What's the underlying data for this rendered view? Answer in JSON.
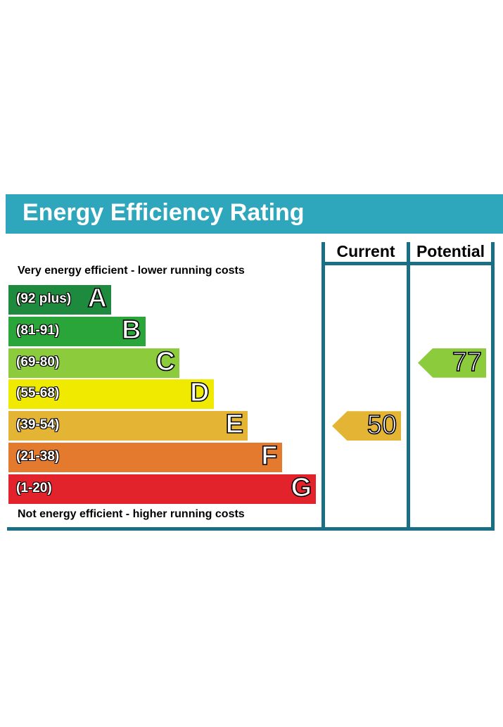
{
  "title": "Energy Efficiency Rating",
  "columns": {
    "current": "Current",
    "potential": "Potential"
  },
  "top_caption": "Very energy efficient - lower running costs",
  "bottom_caption": "Not energy efficient - higher running costs",
  "colors": {
    "header": "#2ea7bc",
    "frame": "#1a6f84"
  },
  "chart_data": {
    "type": "bar",
    "title": "Energy Efficiency Rating",
    "categories": [
      "A",
      "B",
      "C",
      "D",
      "E",
      "F",
      "G"
    ],
    "bands": [
      {
        "letter": "A",
        "range": "(92 plus)",
        "min": 92,
        "max": 100,
        "color": "#1e8a3e"
      },
      {
        "letter": "B",
        "range": "(81-91)",
        "min": 81,
        "max": 91,
        "color": "#2aa53a"
      },
      {
        "letter": "C",
        "range": "(69-80)",
        "min": 69,
        "max": 80,
        "color": "#8ccc3c"
      },
      {
        "letter": "D",
        "range": "(55-68)",
        "min": 55,
        "max": 68,
        "color": "#f0ea00"
      },
      {
        "letter": "E",
        "range": "(39-54)",
        "min": 39,
        "max": 54,
        "color": "#e4b534"
      },
      {
        "letter": "F",
        "range": "(21-38)",
        "min": 21,
        "max": 38,
        "color": "#e47a2e"
      },
      {
        "letter": "G",
        "range": "(1-20)",
        "min": 1,
        "max": 20,
        "color": "#e3232b"
      }
    ],
    "current": {
      "value": 50,
      "label": "50",
      "band": "E",
      "color": "#e4b534"
    },
    "potential": {
      "value": 77,
      "label": "77",
      "band": "C",
      "color": "#8ccc3c"
    }
  }
}
